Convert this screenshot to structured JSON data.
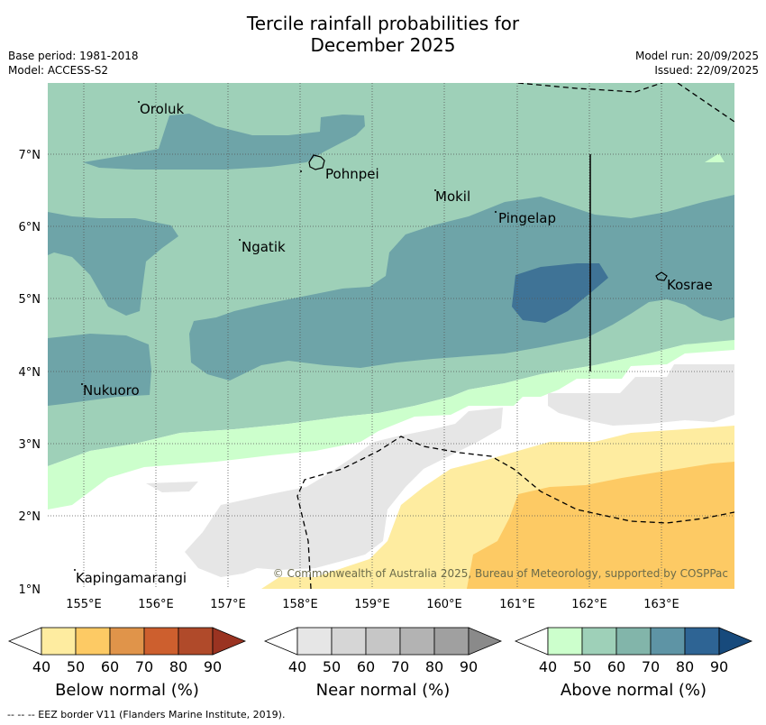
{
  "title": {
    "line1": "Tercile rainfall probabilities for",
    "line2": "December 2025"
  },
  "meta": {
    "base_period": "Base period: 1981-2018",
    "model": "Model: ACCESS-S2",
    "model_run": "Model run: 20/09/2025",
    "issued": "Issued: 22/09/2025"
  },
  "map": {
    "lon_labels": [
      "155°E",
      "156°E",
      "157°E",
      "158°E",
      "159°E",
      "160°E",
      "161°E",
      "162°E",
      "163°E"
    ],
    "lat_labels": [
      "7°N",
      "6°N",
      "5°N",
      "4°N",
      "3°N",
      "2°N",
      "1°N"
    ],
    "places": [
      "Oroluk",
      "Pohnpei",
      "Mokil",
      "Pingelap",
      "Ngatik",
      "Kosrae",
      "Nukuoro",
      "Kapingamarangi"
    ],
    "copyright": "© Commonwealth of Australia 2025, Bureau of Meteorology, supported by COSPPac"
  },
  "colorbars": [
    {
      "title": "Below normal (%)",
      "ticks": [
        "40",
        "50",
        "60",
        "70",
        "80",
        "90"
      ],
      "colors": [
        "#ffffff",
        "#feeca0",
        "#fdca64",
        "#e0944a",
        "#cd5f2e",
        "#b04a2a",
        "#9a3321"
      ]
    },
    {
      "title": "Near normal (%)",
      "ticks": [
        "40",
        "50",
        "60",
        "70",
        "80",
        "90"
      ],
      "colors": [
        "#ffffff",
        "#e6e6e6",
        "#d6d6d6",
        "#c6c6c6",
        "#b3b3b3",
        "#a0a0a0",
        "#8a8a8a"
      ]
    },
    {
      "title": "Above normal (%)",
      "ticks": [
        "40",
        "50",
        "60",
        "70",
        "80",
        "90"
      ],
      "colors": [
        "#ffffff",
        "#ccffcc",
        "#9ed0b8",
        "#82b5aa",
        "#5e94a5",
        "#2e6494",
        "#174a7c"
      ]
    }
  ],
  "footnote": "--  --  -- EEZ border V11 (Flanders Marine Institute, 2019).",
  "palette": {
    "above_50": "#9ed0b8",
    "above_60": "#6ea4a8",
    "above_70": "#3f7396",
    "above_40": "#ccffcc",
    "near_40": "#e6e6e6",
    "below_40": "#feeca0",
    "below_50": "#fdca64"
  }
}
